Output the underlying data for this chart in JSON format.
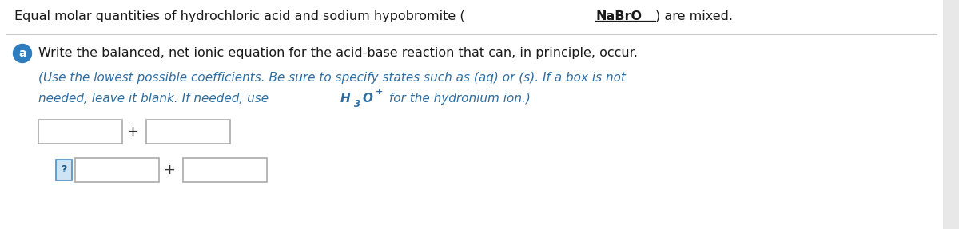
{
  "background_color": "#e8e8e8",
  "page_background": "#ffffff",
  "title_color": "#1a1a1a",
  "title_fontsize": 11.5,
  "separator_color": "#cccccc",
  "circle_a_color": "#2e7dbf",
  "circle_a_text": "a",
  "question_text": "Write the balanced, net ionic equation for the acid-base reaction that can, in principle, occur.",
  "question_fontsize": 11.5,
  "question_color": "#1a1a1a",
  "italic_text_line1": "(Use the lowest possible coefficients. Be sure to specify states such as (aq) or (s). If a box is not",
  "italic_text_line2_prefix": "needed, leave it blank. If needed, use ",
  "italic_text_line2_suffix": " for the hydronium ion.)",
  "italic_fontsize": 11.0,
  "italic_color": "#2e6da0",
  "box_border_color": "#aaaaaa",
  "box_fill_color": "#ffffff",
  "plus_color": "#333333",
  "title_prefix": "Equal molar quantities of hydrochloric acid and sodium hypobromite (",
  "title_nabro": "NaBrO",
  "title_suffix": ") are mixed."
}
